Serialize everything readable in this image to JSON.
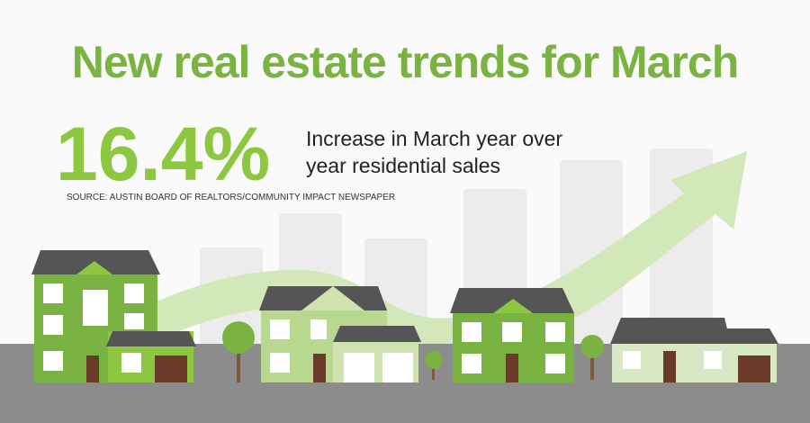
{
  "header": {
    "title": "New real estate trends for March"
  },
  "stat": {
    "value": "16.4%",
    "description": [
      "Increase in March year over",
      "year residential sales"
    ]
  },
  "source": "SOURCE: AUSTIN BOARD OF REALTORS/COMMUNITY IMPACT NEWSPAPER"
}
